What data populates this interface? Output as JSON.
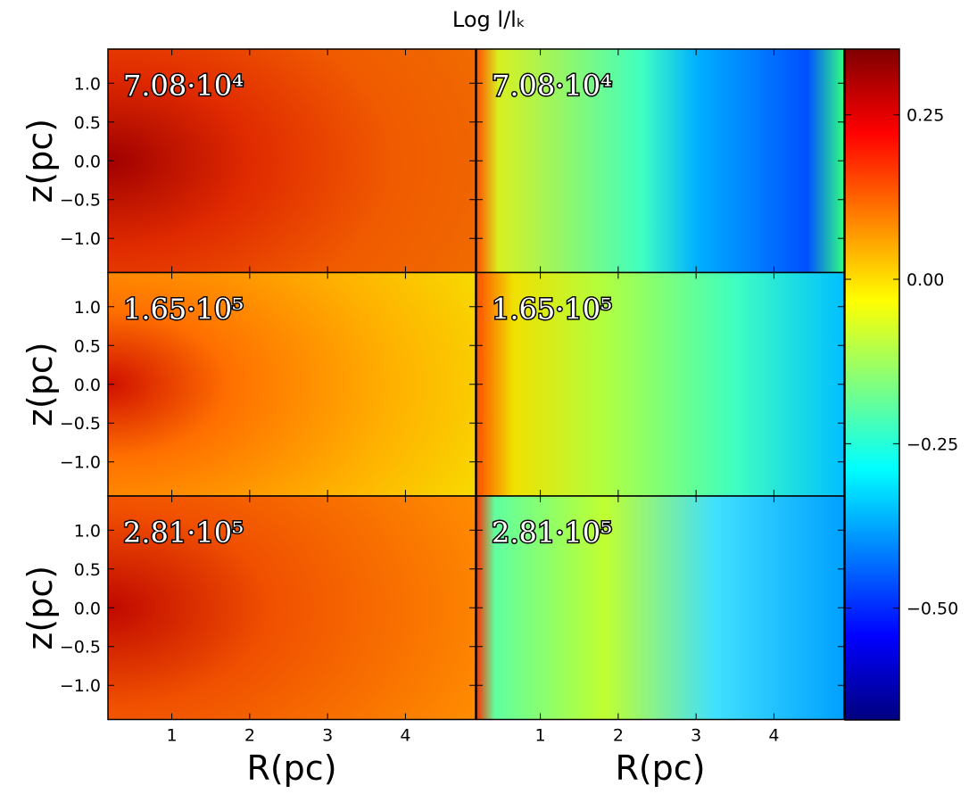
{
  "chart_data": {
    "type": "heatmap",
    "title": "Log l/lₖ",
    "xlabel": "R(pc)",
    "ylabel": "z(pc)",
    "xlim": [
      0.18,
      4.9
    ],
    "xticks": [
      1,
      2,
      3,
      4
    ],
    "ylim": [
      -1.44,
      1.44
    ],
    "yticks": [
      {
        "value": -1.0,
        "label": "−1.0"
      },
      {
        "value": -0.5,
        "label": "−0.5"
      },
      {
        "value": 0.0,
        "label": "0.0"
      },
      {
        "value": 0.5,
        "label": "0.5"
      },
      {
        "value": 1.0,
        "label": "1.0"
      }
    ],
    "panels": [
      {
        "label": "7.08·10⁴"
      },
      {
        "label": "7.08·10⁴"
      },
      {
        "label": "1.65·10⁵"
      },
      {
        "label": "1.65·10⁵"
      },
      {
        "label": "2.81·10⁵"
      },
      {
        "label": "2.81·10⁵"
      }
    ],
    "colorbar": {
      "lim": [
        -0.67,
        0.35
      ],
      "ticks": [
        {
          "value": 0.25,
          "label": "0.25"
        },
        {
          "value": 0.0,
          "label": "0.00"
        },
        {
          "value": -0.25,
          "label": "−0.25"
        },
        {
          "value": -0.5,
          "label": "−0.50"
        }
      ]
    }
  }
}
